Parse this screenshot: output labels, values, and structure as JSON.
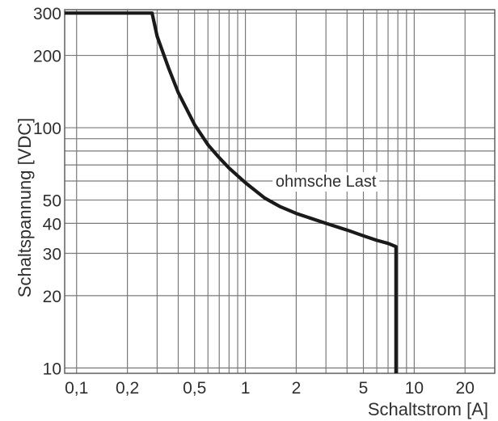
{
  "chart_data": {
    "type": "line",
    "xlabel": "Schaltstrom [A]",
    "ylabel": "Schaltspannung [VDC]",
    "x_scale": "log",
    "y_scale": "log",
    "xlim": [
      0.085,
      30
    ],
    "ylim": [
      9.5,
      310
    ],
    "x_ticks": [
      {
        "value": 0.1,
        "label": "0,1"
      },
      {
        "value": 0.2,
        "label": "0,2"
      },
      {
        "value": 0.5,
        "label": "0,5"
      },
      {
        "value": 1,
        "label": "1"
      },
      {
        "value": 2,
        "label": "2"
      },
      {
        "value": 5,
        "label": "5"
      },
      {
        "value": 10,
        "label": "10"
      },
      {
        "value": 20,
        "label": "20"
      }
    ],
    "y_ticks": [
      {
        "value": 10,
        "label": "10"
      },
      {
        "value": 20,
        "label": "20"
      },
      {
        "value": 30,
        "label": "30"
      },
      {
        "value": 40,
        "label": "40"
      },
      {
        "value": 50,
        "label": "50"
      },
      {
        "value": 100,
        "label": "100"
      },
      {
        "value": 200,
        "label": "200"
      },
      {
        "value": 300,
        "label": "300"
      }
    ],
    "x_gridlines": [
      0.1,
      0.2,
      0.3,
      0.4,
      0.5,
      0.6,
      0.7,
      0.8,
      0.9,
      1,
      2,
      3,
      4,
      5,
      6,
      7,
      8,
      9,
      10,
      20
    ],
    "y_gridlines": [
      10,
      20,
      30,
      40,
      50,
      60,
      70,
      80,
      90,
      100,
      200,
      300
    ],
    "grid": true,
    "series": [
      {
        "name": "",
        "color": "#1a1a1a",
        "points": [
          [
            0.085,
            300
          ],
          [
            0.28,
            300
          ],
          [
            0.3,
            240
          ],
          [
            0.35,
            178
          ],
          [
            0.4,
            140
          ],
          [
            0.5,
            103
          ],
          [
            0.6,
            85
          ],
          [
            0.7,
            75
          ],
          [
            0.8,
            68
          ],
          [
            1.0,
            59
          ],
          [
            1.3,
            51
          ],
          [
            1.6,
            47
          ],
          [
            2.0,
            44
          ],
          [
            3.0,
            40
          ],
          [
            4.0,
            37.5
          ],
          [
            5.0,
            35.5
          ],
          [
            6.0,
            34
          ],
          [
            7.0,
            33
          ],
          [
            7.8,
            32
          ],
          [
            7.8,
            9.5
          ]
        ]
      }
    ],
    "annotations": [
      {
        "text": "ohmsche Last",
        "x": 3.0,
        "y": 60
      }
    ]
  }
}
